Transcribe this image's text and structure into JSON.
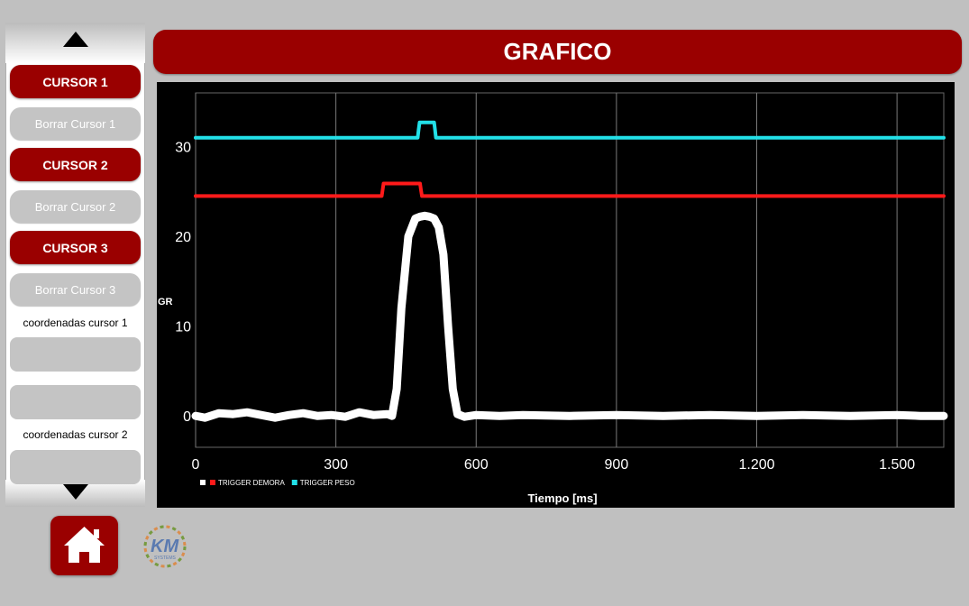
{
  "header": {
    "title": "GRAFICO"
  },
  "sidebar": {
    "scroll_up_icon": "triangle-up-icon",
    "scroll_down_icon": "triangle-down-icon",
    "cursor_buttons": [
      {
        "label": "CURSOR 1",
        "clear_label": "Borrar Cursor 1"
      },
      {
        "label": "CURSOR 2",
        "clear_label": "Borrar Cursor 2"
      },
      {
        "label": "CURSOR 3",
        "clear_label": "Borrar Cursor 3"
      }
    ],
    "coords": [
      {
        "label": "coordenadas cursor 1"
      },
      {
        "label": "coordenadas cursor 2"
      }
    ]
  },
  "footer": {
    "home_icon": "home-icon",
    "logo_text": "KM",
    "logo_subtext": "SYSTEMS"
  },
  "colors": {
    "accent": "#9a0000",
    "series_main": "#ffffff",
    "trigger_demora": "#ff1a1a",
    "trigger_peso": "#22e0e8"
  },
  "chart_data": {
    "type": "line",
    "xlabel": "Tiempo [ms]",
    "ylabel": "GR",
    "xlim": [
      0,
      1600
    ],
    "ylim": [
      -3.5,
      36
    ],
    "x_ticks": [
      0,
      300,
      600,
      900,
      1200,
      1500
    ],
    "x_tick_labels": [
      "0",
      "300",
      "600",
      "900",
      "1.200",
      "1.500"
    ],
    "y_ticks": [
      0,
      10,
      20,
      30
    ],
    "y_tick_labels": [
      "0",
      "10",
      "20",
      "30"
    ],
    "grid": true,
    "legend_placement": "bottom-left",
    "series": [
      {
        "name": "",
        "color": "#ffffff",
        "x": [
          0,
          20,
          50,
          80,
          110,
          140,
          170,
          200,
          230,
          260,
          290,
          320,
          350,
          380,
          410,
          420,
          430,
          440,
          455,
          470,
          480,
          490,
          500,
          510,
          520,
          530,
          540,
          550,
          560,
          575,
          600,
          650,
          700,
          800,
          900,
          1000,
          1100,
          1200,
          1300,
          1400,
          1500,
          1550,
          1600
        ],
        "y": [
          0.0,
          -0.2,
          0.3,
          0.2,
          0.4,
          0.1,
          -0.2,
          0.1,
          0.3,
          0.0,
          0.1,
          -0.1,
          0.4,
          0.1,
          0.2,
          0.0,
          3,
          12,
          20,
          22,
          22.2,
          22.3,
          22.2,
          22,
          21,
          18,
          10,
          3,
          0.2,
          -0.1,
          0.1,
          0.0,
          0.1,
          0.0,
          0.1,
          0.0,
          0.1,
          0.0,
          0.1,
          0.0,
          0.1,
          0.0,
          0.0
        ]
      },
      {
        "name": "TRIGGER DEMORA",
        "color": "#ff1a1a",
        "x": [
          0,
          398,
          400,
          402,
          480,
          482,
          484,
          1600
        ],
        "y": [
          24.5,
          24.5,
          25.2,
          25.9,
          25.9,
          25.2,
          24.5,
          24.5
        ]
      },
      {
        "name": "TRIGGER PESO",
        "color": "#22e0e8",
        "x": [
          0,
          475,
          477,
          479,
          510,
          512,
          514,
          1600
        ],
        "y": [
          31,
          31,
          31.9,
          32.7,
          32.7,
          31.9,
          31,
          31
        ]
      }
    ]
  }
}
